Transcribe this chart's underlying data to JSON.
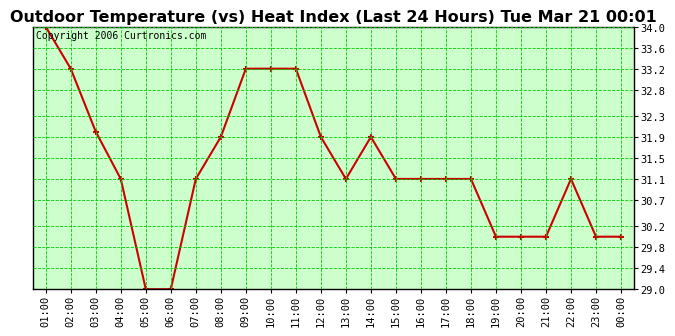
{
  "title": "Outdoor Temperature (vs) Heat Index (Last 24 Hours) Tue Mar 21 00:01",
  "copyright": "Copyright 2006 Curtronics.com",
  "x_labels": [
    "01:00",
    "02:00",
    "03:00",
    "04:00",
    "05:00",
    "06:00",
    "07:00",
    "08:00",
    "09:00",
    "10:00",
    "11:00",
    "12:00",
    "13:00",
    "14:00",
    "15:00",
    "16:00",
    "17:00",
    "18:00",
    "19:00",
    "20:00",
    "21:00",
    "22:00",
    "23:00",
    "00:00"
  ],
  "y_values": [
    34.0,
    33.2,
    32.0,
    31.1,
    29.0,
    29.0,
    31.1,
    31.9,
    33.2,
    33.2,
    33.2,
    31.9,
    31.1,
    31.9,
    31.1,
    31.1,
    31.1,
    31.1,
    30.0,
    30.0,
    30.0,
    31.1,
    30.0,
    30.0
  ],
  "y_min": 29.0,
  "y_max": 34.0,
  "y_ticks": [
    29.0,
    29.4,
    29.8,
    30.2,
    30.7,
    31.1,
    31.5,
    31.9,
    32.3,
    32.8,
    33.2,
    33.6,
    34.0
  ],
  "line_color": "#cc0000",
  "marker_color": "#cc0000",
  "fig_bg_color": "#ffffff",
  "plot_bg_color": "#ccffcc",
  "grid_color": "#00cc00",
  "border_color": "#000000",
  "title_color": "#000000",
  "title_fontsize": 11.5,
  "copyright_fontsize": 7,
  "tick_fontsize": 7.5
}
